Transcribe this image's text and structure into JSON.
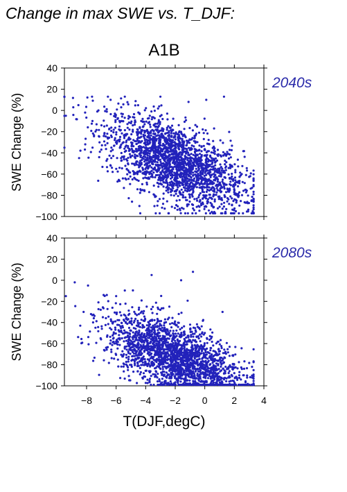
{
  "figure": {
    "title": "Change in max SWE vs. T_DJF:",
    "scenario": "A1B",
    "point_color": "#2222bb",
    "period_color": "#2a2aaa"
  },
  "chart_data": [
    {
      "type": "scatter",
      "period_label": "2040s",
      "ylabel": "SWE Change (%)",
      "xlabel": "",
      "xlim": [
        -9.5,
        4
      ],
      "ylim": [
        -100,
        40
      ],
      "yticks": [
        40,
        20,
        0,
        -20,
        -40,
        -60,
        -80,
        -100
      ],
      "xticks": [
        -8,
        -6,
        -4,
        -2,
        0,
        2,
        4
      ],
      "x_ticklabels_shown": false,
      "grid": false,
      "distribution": {
        "n_points": 2200,
        "x_range": [
          -9.5,
          3.3
        ],
        "y_range": [
          -97,
          13
        ],
        "x_mean": -2.0,
        "y_mean_at_x_min": -8,
        "y_slope_per_degC": -5.5,
        "y_spread": 18
      },
      "x": [
        -9.4,
        -8.9,
        -8.1,
        -7.6,
        -7.2,
        -6.8,
        -6.3,
        -5.9,
        -5.5,
        -5.1,
        -4.7,
        -4.3,
        -3.9,
        -3.5,
        -3.1,
        -2.7,
        -2.3,
        -1.9,
        -1.5,
        -1.1,
        -0.7,
        -0.3,
        0.1,
        0.5,
        0.9,
        1.3,
        1.7,
        2.1,
        2.5,
        3.2
      ],
      "y": [
        -5,
        3,
        -2,
        -10,
        0,
        -15,
        -25,
        -8,
        -30,
        -18,
        -45,
        -10,
        -40,
        -55,
        -20,
        -60,
        -35,
        -85,
        -30,
        8,
        -70,
        -45,
        10,
        -90,
        -55,
        13,
        -75,
        -95,
        -60,
        -73
      ]
    },
    {
      "type": "scatter",
      "period_label": "2080s",
      "ylabel": "SWE Change (%)",
      "xlabel": "T(DJF,degC)",
      "xlim": [
        -9.5,
        4
      ],
      "ylim": [
        -100,
        40
      ],
      "yticks": [
        40,
        20,
        0,
        -20,
        -40,
        -60,
        -80,
        -100
      ],
      "xticks": [
        -8,
        -6,
        -4,
        -2,
        0,
        2,
        4
      ],
      "xticklabels": [
        "−8",
        "−6",
        "−4",
        "−2",
        "0",
        "2",
        "4"
      ],
      "x_ticklabels_shown": true,
      "grid": false,
      "distribution": {
        "n_points": 2200,
        "x_range": [
          -9.5,
          3.3
        ],
        "y_range": [
          -99,
          8
        ],
        "x_mean": -2.0,
        "y_mean_at_x_min": -35,
        "y_slope_per_degC": -5.0,
        "y_spread": 16
      },
      "x": [
        -9.4,
        -8.8,
        -8.2,
        -7.9,
        -7.4,
        -6.9,
        -6.4,
        -6.0,
        -5.6,
        -5.2,
        -4.8,
        -4.4,
        -4.0,
        -3.6,
        -3.2,
        -2.8,
        -2.4,
        -2.0,
        -1.6,
        -1.2,
        -0.8,
        -0.4,
        0.0,
        0.4,
        0.8,
        1.2,
        1.6,
        2.0,
        2.6,
        3.2
      ],
      "y": [
        -15,
        -2,
        -30,
        -5,
        -45,
        -35,
        -60,
        -15,
        -55,
        -85,
        -40,
        -70,
        -80,
        5,
        -65,
        -90,
        -25,
        -75,
        0,
        -85,
        8,
        -95,
        -50,
        -98,
        -70,
        -30,
        -92,
        -88,
        -90,
        -82
      ]
    }
  ]
}
